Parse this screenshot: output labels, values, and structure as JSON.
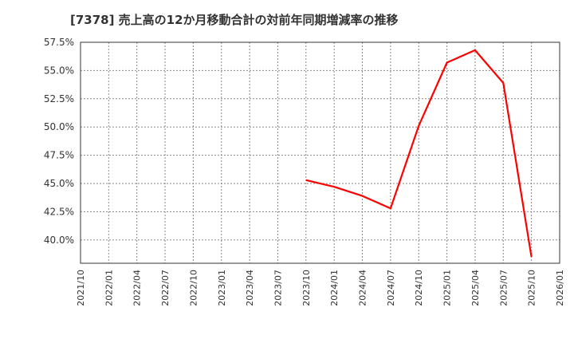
{
  "chart_data": {
    "type": "line",
    "title": "[7378]  売上高の12か月移動合計の対前年同期増減率の推移",
    "xlabel": "",
    "ylabel": "",
    "ylim": [
      38.0,
      57.5
    ],
    "grid": true,
    "legend": null,
    "x_tick_labels": [
      "2021/10",
      "2022/01",
      "2022/04",
      "2022/07",
      "2022/10",
      "2023/01",
      "2023/04",
      "2023/07",
      "2023/10",
      "2024/01",
      "2024/04",
      "2024/07",
      "2024/10",
      "2025/01",
      "2025/04",
      "2025/07",
      "2025/10",
      "2026/01"
    ],
    "y_tick_labels": [
      "57.5%",
      "55.0%",
      "52.5%",
      "50.0%",
      "47.5%",
      "45.0%",
      "42.5%",
      "40.0%"
    ],
    "y_tick_values": [
      57.5,
      55.0,
      52.5,
      50.0,
      47.5,
      45.0,
      42.5,
      40.0
    ],
    "series": [
      {
        "name": "売上高12か月移動合計 対前年同期増減率",
        "color": "#ff0000",
        "x": [
          "2023/10",
          "2024/01",
          "2024/04",
          "2024/07",
          "2024/10",
          "2025/01",
          "2025/04",
          "2025/07",
          "2025/10"
        ],
        "values": [
          45.3,
          44.7,
          43.9,
          42.8,
          50.1,
          55.7,
          56.8,
          53.9,
          38.5
        ]
      }
    ]
  },
  "colors": {
    "line": "#ff0000",
    "grid": "#888888",
    "axis": "#333333",
    "text": "#333333"
  }
}
